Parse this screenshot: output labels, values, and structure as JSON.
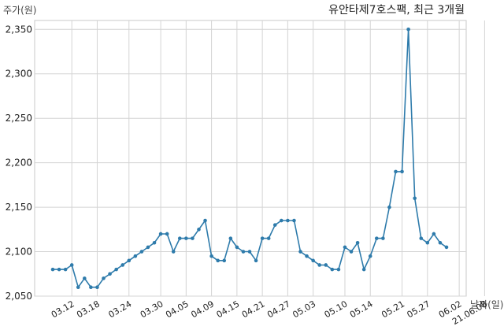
{
  "chart_data": {
    "type": "line",
    "title": "유안타제7호스팩, 최근 3개월",
    "ylabel": "주가(원)",
    "xlabel": "날짜(일)",
    "ylim": [
      2050,
      2360
    ],
    "yticks": [
      2050,
      2100,
      2150,
      2200,
      2250,
      2300,
      2350
    ],
    "ytick_labels": [
      "2,050",
      "2,100",
      "2,150",
      "2,200",
      "2,250",
      "2,300",
      "2,350"
    ],
    "xtick_labels": [
      "03.12",
      "03.18",
      "03.24",
      "03.30",
      "04.05",
      "04.09",
      "04.15",
      "04.21",
      "04.27",
      "05.03",
      "05.10",
      "05.14",
      "05.21",
      "05.27",
      "06.02",
      "21.06.08"
    ],
    "xtick_index": [
      3,
      7,
      12,
      17,
      21,
      25,
      29,
      33,
      37,
      41,
      46,
      50,
      55,
      59,
      64,
      68
    ],
    "grid": true,
    "color": "#2e7bab",
    "series": [
      {
        "values": [
          2080,
          2080,
          2080,
          2085,
          2060,
          2070,
          2060,
          2060,
          2070,
          2075,
          2080,
          2085,
          2090,
          2095,
          2100,
          2105,
          2110,
          2120,
          2120,
          2100,
          2115,
          2115,
          2115,
          2125,
          2135,
          2095,
          2090,
          2090,
          2115,
          2105,
          2100,
          2100,
          2090,
          2115,
          2115,
          2130,
          2135,
          2135,
          2135,
          2100,
          2095,
          2090,
          2085,
          2085,
          2080,
          2080,
          2105,
          2100,
          2110,
          2080,
          2095,
          2115,
          2115,
          2150,
          2190,
          2190,
          2350,
          2160,
          2115,
          2110,
          2120,
          2110,
          2105
        ]
      }
    ]
  }
}
